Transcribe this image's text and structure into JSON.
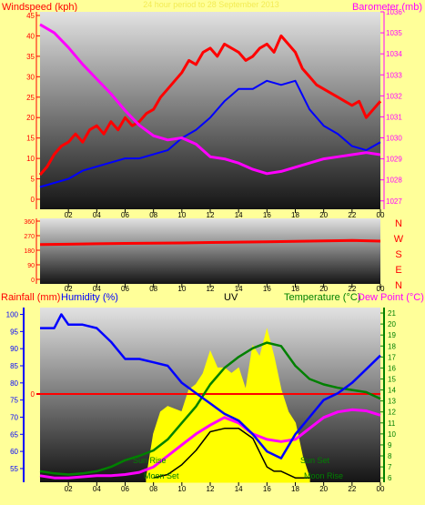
{
  "header": {
    "wind_title": "Windspeed (kph)",
    "pressure_title": "Barometer (mb)",
    "date_line": "24 hour period to 28 September 2013"
  },
  "colors": {
    "page_bg": "#ffff99",
    "wind_gust": "#ff0000",
    "wind_avg": "#0000ff",
    "barometer": "#ff00ff",
    "direction": "#ff0000",
    "rainfall": "#ff0000",
    "humidity": "#0000ff",
    "uv": "#ffff00",
    "temperature": "#008000",
    "dew_point": "#ff00ff",
    "solar": "#000000"
  },
  "chart_data": [
    {
      "type": "line",
      "name": "wind-and-pressure",
      "x_ticks": [
        "02",
        "04",
        "06",
        "08",
        "10",
        "12",
        "14",
        "16",
        "18",
        "20",
        "22",
        "00"
      ],
      "left_axis": {
        "title": "Windspeed (kph)",
        "range": [
          0,
          45
        ],
        "ticks": [
          0,
          5,
          10,
          15,
          20,
          25,
          30,
          35,
          40,
          45
        ]
      },
      "right_axis": {
        "title": "Barometer (mb)",
        "range": [
          1026.6,
          1036
        ],
        "ticks": [
          1027,
          1028,
          1029,
          1030,
          1031,
          1032,
          1033,
          1034,
          1035,
          1036
        ]
      },
      "series": [
        {
          "name": "Windspeed",
          "axis": "left",
          "key": "wind_gust",
          "x": [
            0,
            0.5,
            1,
            1.5,
            2,
            2.5,
            3,
            3.5,
            4,
            4.5,
            5,
            5.5,
            6,
            6.5,
            7,
            7.5,
            8,
            8.5,
            9,
            9.5,
            10,
            10.5,
            11,
            11.5,
            12,
            12.5,
            13,
            13.5,
            14,
            14.5,
            15,
            15.5,
            16,
            16.5,
            17,
            17.5,
            18,
            18.5,
            19,
            19.5,
            20,
            20.5,
            21,
            21.5,
            22,
            22.5,
            23,
            23.5,
            24
          ],
          "y": [
            6,
            8,
            11,
            13,
            14,
            16,
            14,
            17,
            18,
            16,
            19,
            17,
            20,
            18,
            19,
            21,
            22,
            25,
            27,
            29,
            31,
            34,
            33,
            36,
            37,
            35,
            38,
            37,
            36,
            34,
            35,
            37,
            38,
            36,
            40,
            38,
            36,
            32,
            30,
            28,
            27,
            26,
            25,
            24,
            23,
            24,
            20,
            22,
            24
          ]
        },
        {
          "name": "Average",
          "axis": "left",
          "key": "wind_avg",
          "x": [
            0,
            1,
            2,
            3,
            4,
            5,
            6,
            7,
            8,
            9,
            10,
            11,
            12,
            13,
            14,
            15,
            16,
            17,
            18,
            19,
            20,
            21,
            22,
            23,
            24
          ],
          "y": [
            3,
            4,
            5,
            7,
            8,
            9,
            10,
            10,
            11,
            12,
            15,
            17,
            20,
            24,
            27,
            27,
            29,
            28,
            29,
            22,
            18,
            16,
            13,
            12,
            14
          ]
        },
        {
          "name": "Barometer",
          "axis": "right",
          "key": "barometer",
          "x": [
            0,
            1,
            2,
            3,
            4,
            5,
            6,
            7,
            8,
            9,
            10,
            11,
            12,
            13,
            14,
            15,
            16,
            17,
            18,
            19,
            20,
            21,
            22,
            23,
            24
          ],
          "y": [
            1035.4,
            1035.0,
            1034.3,
            1033.5,
            1032.8,
            1032.1,
            1031.3,
            1030.6,
            1030.1,
            1029.9,
            1030.0,
            1029.7,
            1029.1,
            1029.0,
            1028.8,
            1028.5,
            1028.3,
            1028.4,
            1028.6,
            1028.8,
            1029.0,
            1029.1,
            1029.2,
            1029.3,
            1029.2
          ]
        }
      ]
    },
    {
      "type": "line",
      "name": "wind-direction",
      "x_ticks": [
        "02",
        "04",
        "06",
        "08",
        "10",
        "12",
        "14",
        "16",
        "18",
        "20",
        "22",
        "00"
      ],
      "y_axis": {
        "range": [
          0,
          360
        ],
        "ticks": [
          0,
          90,
          180,
          270,
          360
        ]
      },
      "compass_labels": [
        "N",
        "W",
        "S",
        "E",
        "N"
      ],
      "series": [
        {
          "name": "Direction",
          "key": "direction",
          "x": [
            0,
            2,
            4,
            6,
            8,
            10,
            12,
            14,
            16,
            18,
            20,
            22,
            24
          ],
          "y": [
            215,
            217,
            220,
            222,
            224,
            225,
            228,
            230,
            232,
            235,
            238,
            240,
            236
          ]
        }
      ]
    },
    {
      "type": "line",
      "name": "rain-humidity-uv-temperature",
      "x_ticks": [
        "02",
        "04",
        "06",
        "08",
        "10",
        "12",
        "14",
        "16",
        "18",
        "20",
        "22",
        "00"
      ],
      "titles": {
        "rainfall": "Rainfall (mm)",
        "humidity": "Humidity (%)",
        "uv": "UV",
        "temperature": "Temperature (°C)",
        "dew_point": "Dew Point (°C)"
      },
      "annotations": [
        "Sun Rise",
        "Sun Set",
        "Moon Set",
        "Moon Rise"
      ],
      "rainfall_axis": {
        "ticks": [
          0
        ],
        "value": 0
      },
      "humidity_axis": {
        "range": [
          51,
          102
        ],
        "ticks": [
          55,
          60,
          65,
          70,
          75,
          80,
          85,
          90,
          95,
          100
        ]
      },
      "temperature_axis": {
        "range": [
          5.6,
          21.5
        ],
        "ticks": [
          6,
          7,
          8,
          9,
          10,
          11,
          12,
          13,
          14,
          15,
          16,
          17,
          18,
          19,
          20,
          21
        ]
      },
      "series": [
        {
          "name": "Humidity",
          "axis": "humidity",
          "key": "humidity",
          "x": [
            0,
            1,
            1.5,
            2,
            3,
            4,
            5,
            6,
            7,
            8,
            9,
            10,
            11,
            12,
            13,
            14,
            15,
            16,
            17,
            18,
            19,
            20,
            21,
            22,
            23,
            24
          ],
          "y": [
            96,
            96,
            100,
            97,
            97,
            96,
            92,
            87,
            87,
            86,
            85,
            80,
            77,
            74,
            71,
            69,
            65,
            60,
            58,
            65,
            70,
            75,
            77,
            80,
            84,
            88
          ]
        },
        {
          "name": "Temperature",
          "axis": "temperature",
          "key": "temperature",
          "x": [
            0,
            1,
            2,
            3,
            4,
            5,
            6,
            7,
            8,
            9,
            10,
            11,
            12,
            13,
            14,
            15,
            16,
            17,
            18,
            19,
            20,
            21,
            22,
            23,
            24
          ],
          "y": [
            6.6,
            6.4,
            6.3,
            6.4,
            6.6,
            7.0,
            7.6,
            8.0,
            8.5,
            9.5,
            11.0,
            12.5,
            14.5,
            16.0,
            17.0,
            17.8,
            18.3,
            18.0,
            16.2,
            15.0,
            14.5,
            14.2,
            14.0,
            13.8,
            13.2
          ]
        },
        {
          "name": "Dew Point",
          "axis": "temperature",
          "key": "dew_point",
          "x": [
            0,
            1,
            2,
            3,
            4,
            5,
            6,
            7,
            8,
            9,
            10,
            11,
            12,
            13,
            14,
            15,
            16,
            17,
            18,
            19,
            20,
            21,
            22,
            23,
            24
          ],
          "y": [
            6.2,
            6.0,
            6.0,
            6.1,
            6.2,
            6.2,
            6.3,
            6.5,
            7.0,
            8.0,
            9.0,
            10.0,
            10.8,
            11.5,
            11.0,
            10.0,
            9.5,
            9.3,
            9.5,
            10.5,
            11.5,
            12.0,
            12.2,
            12.1,
            11.7
          ]
        },
        {
          "name": "UV",
          "axis": "temperature",
          "key": "uv",
          "x": [
            7.5,
            8,
            8.5,
            9,
            10,
            10.5,
            11,
            11.5,
            12,
            12.5,
            13,
            13.5,
            14,
            14.5,
            15,
            15.5,
            16,
            16.5,
            17,
            17.5,
            18,
            18.5,
            19
          ],
          "y": [
            6,
            10,
            12,
            12.5,
            12,
            14,
            14.5,
            15.5,
            17.5,
            16,
            16,
            15.5,
            16,
            14,
            18,
            17,
            19.5,
            17,
            14,
            12,
            11,
            8,
            6
          ]
        },
        {
          "name": "Solar",
          "axis": "temperature",
          "key": "solar",
          "x": [
            8,
            9,
            10,
            11,
            12,
            13,
            14,
            15,
            16,
            16.5,
            17,
            18,
            19
          ],
          "y": [
            6.0,
            6.3,
            7.2,
            8.5,
            10.2,
            10.5,
            10.5,
            9.6,
            7.0,
            6.6,
            6.6,
            6.0,
            6.0
          ]
        }
      ]
    }
  ]
}
